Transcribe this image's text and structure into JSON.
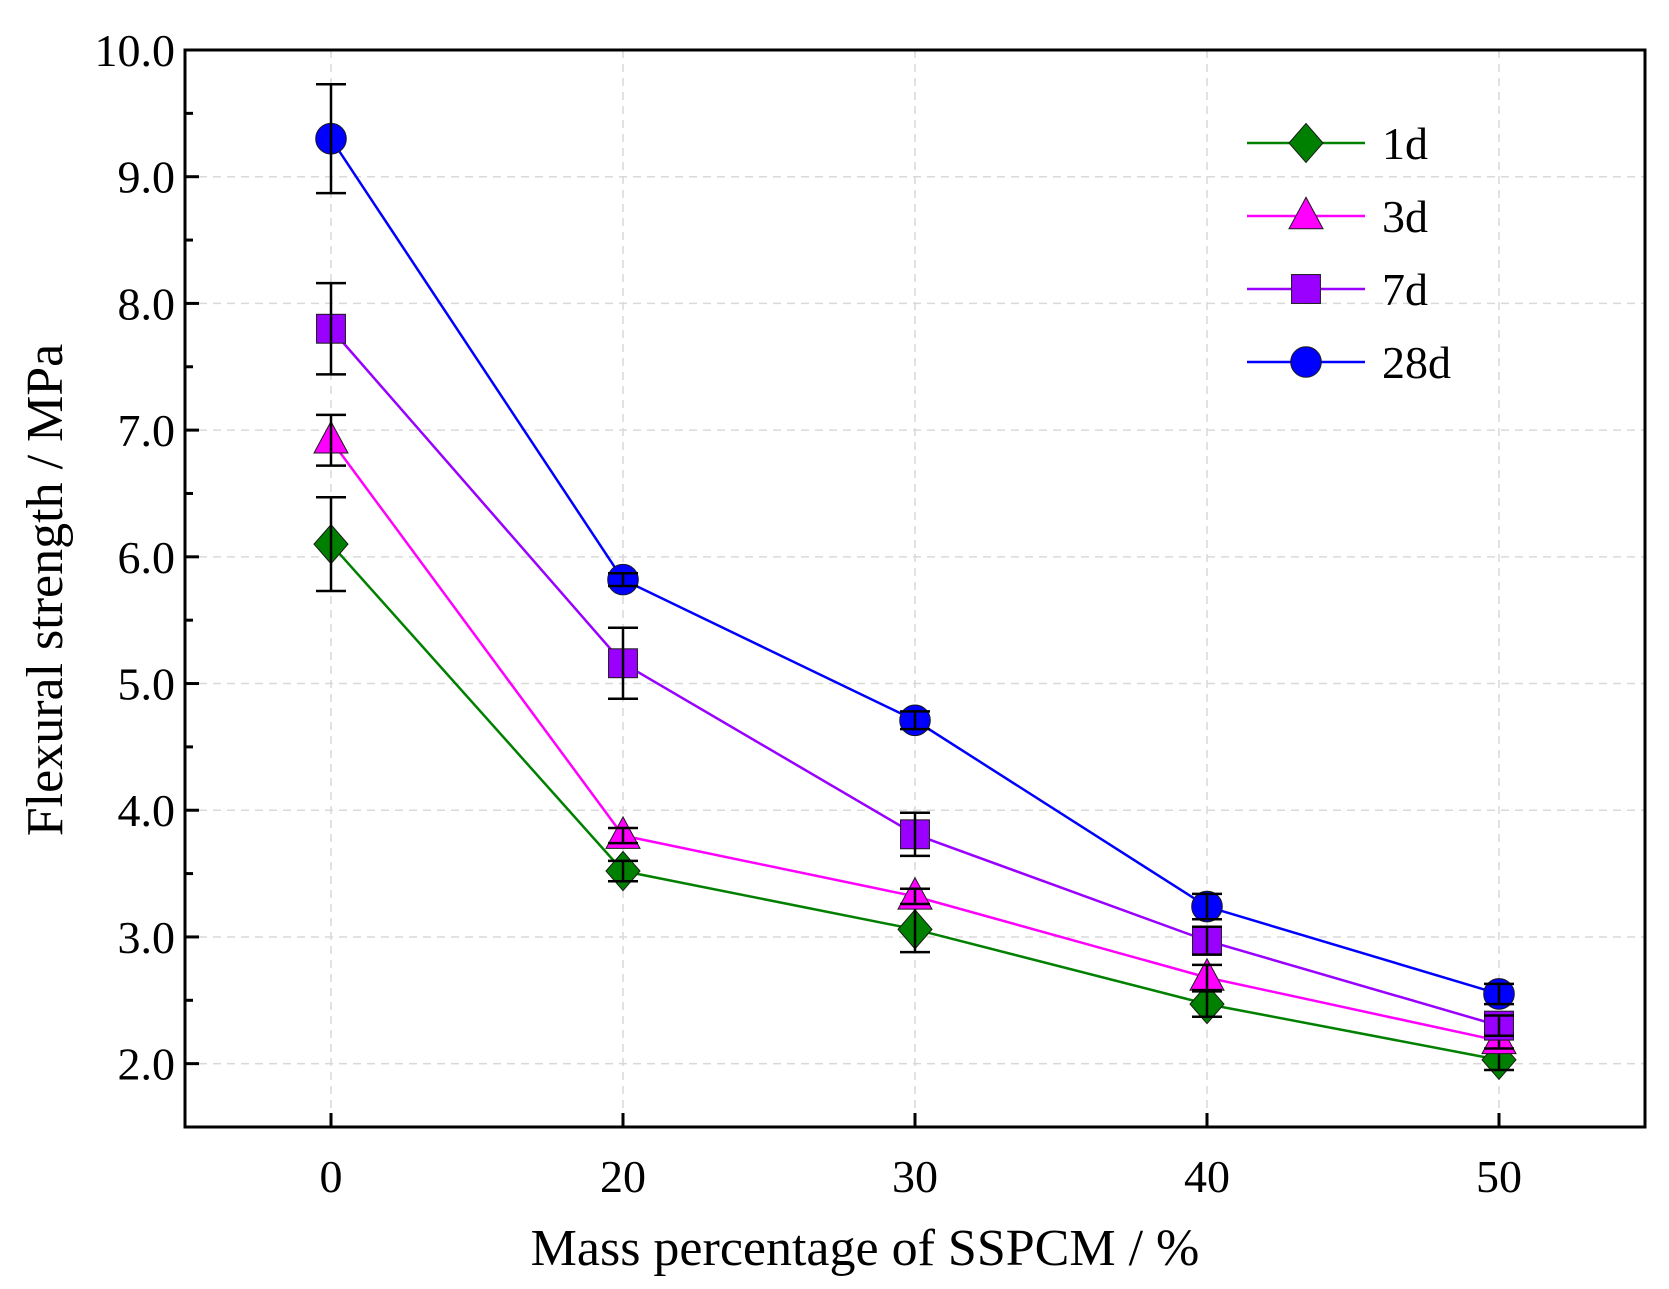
{
  "chart_data": {
    "type": "line",
    "title": "",
    "xlabel": "Mass percentage of SSPCM / %",
    "ylabel": "Flexural strength / MPa",
    "categories": [
      "0",
      "20",
      "30",
      "40",
      "50"
    ],
    "ylim": [
      1.5,
      10.0
    ],
    "yticks": [
      "2.0",
      "3.0",
      "4.0",
      "5.0",
      "6.0",
      "7.0",
      "8.0",
      "9.0",
      "10.0"
    ],
    "ytick_values": [
      2.0,
      3.0,
      4.0,
      5.0,
      6.0,
      7.0,
      8.0,
      9.0,
      10.0
    ],
    "grid": true,
    "legend_position": "top-right",
    "series": [
      {
        "name": "1d",
        "color": "#008000",
        "marker": "diamond",
        "values": [
          6.1,
          3.52,
          3.06,
          2.47,
          2.03
        ],
        "errors": [
          0.37,
          0.08,
          0.18,
          0.1,
          0.08
        ]
      },
      {
        "name": "3d",
        "color": "#ff00ff",
        "marker": "triangle",
        "values": [
          6.92,
          3.8,
          3.32,
          2.68,
          2.18
        ],
        "errors": [
          0.2,
          0.06,
          0.06,
          0.1,
          0.06
        ]
      },
      {
        "name": "7d",
        "color": "#9900ff",
        "marker": "square",
        "values": [
          7.8,
          5.16,
          3.81,
          2.97,
          2.3
        ],
        "errors": [
          0.36,
          0.28,
          0.17,
          0.11,
          0.08
        ]
      },
      {
        "name": "28d",
        "color": "#0000ff",
        "marker": "circle",
        "values": [
          9.3,
          5.82,
          4.71,
          3.24,
          2.55
        ],
        "errors": [
          0.43,
          0.05,
          0.07,
          0.1,
          0.08
        ]
      }
    ]
  }
}
